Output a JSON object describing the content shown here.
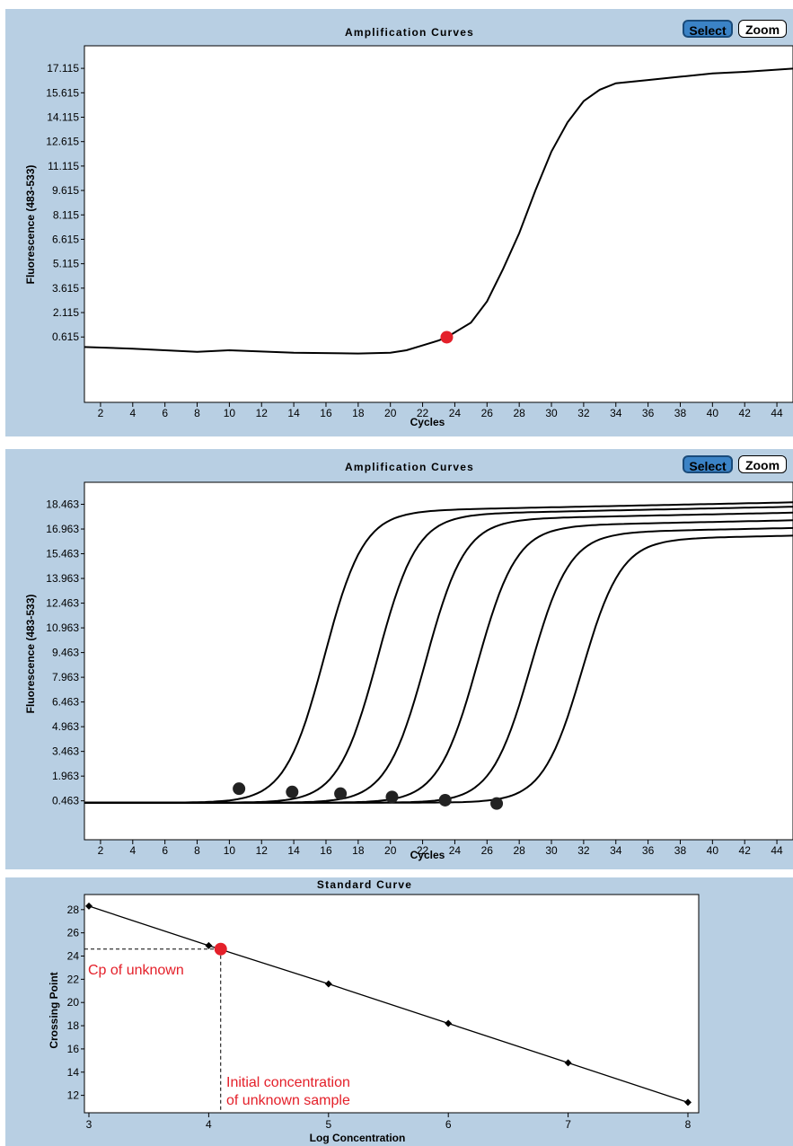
{
  "panels": [
    {
      "title": "Amplification Curves",
      "buttons": {
        "select": "Select",
        "zoom": "Zoom"
      }
    },
    {
      "title": "Amplification Curves",
      "buttons": {
        "select": "Select",
        "zoom": "Zoom"
      }
    },
    {
      "title": "Standard Curve"
    }
  ],
  "colors": {
    "panel_bg": "#b8cfe3",
    "plot_bg": "#ffffff",
    "curve": "#000000",
    "highlight": "#e4202a",
    "marker": "#222222",
    "select_button": "#3b83c6"
  },
  "chart_data": [
    {
      "type": "line",
      "title": "Amplification Curves",
      "xlabel": "Cycles",
      "ylabel": "Fluorescence (483-533)",
      "xlim": [
        1,
        45
      ],
      "ylim": [
        -3.4,
        18.5
      ],
      "xticks": [
        2,
        4,
        6,
        8,
        10,
        12,
        14,
        16,
        18,
        20,
        22,
        24,
        26,
        28,
        30,
        32,
        34,
        36,
        38,
        40,
        42,
        44
      ],
      "yticks": [
        "0.615",
        "2.115",
        "3.615",
        "5.115",
        "6.615",
        "8.115",
        "9.615",
        "11.115",
        "12.615",
        "14.115",
        "15.615",
        "17.115"
      ],
      "series": [
        {
          "x": [
            1,
            4,
            8,
            10,
            14,
            18,
            20,
            21,
            22,
            23,
            23.5,
            25,
            26,
            27,
            28,
            29,
            30,
            31,
            32,
            33,
            34,
            36,
            38,
            40,
            42,
            45
          ],
          "y": [
            0.0,
            -0.1,
            -0.3,
            -0.2,
            -0.35,
            -0.4,
            -0.35,
            -0.2,
            0.1,
            0.4,
            0.6,
            1.5,
            2.8,
            4.8,
            7.0,
            9.6,
            12.0,
            13.8,
            15.1,
            15.8,
            16.2,
            16.4,
            16.6,
            16.8,
            16.9,
            17.1
          ]
        }
      ],
      "highlight_point": {
        "x": 23.5,
        "y": 0.6
      }
    },
    {
      "type": "line",
      "title": "Amplification Curves",
      "xlabel": "Cycles",
      "ylabel": "Fluorescence (483-533)",
      "xlim": [
        1,
        45
      ],
      "ylim": [
        -1.9,
        19.8
      ],
      "xticks": [
        2,
        4,
        6,
        8,
        10,
        12,
        14,
        16,
        18,
        20,
        22,
        24,
        26,
        28,
        30,
        32,
        34,
        36,
        38,
        40,
        42,
        44
      ],
      "yticks": [
        "0.463",
        "1.963",
        "3.463",
        "4.963",
        "6.463",
        "7.963",
        "9.463",
        "10.963",
        "12.463",
        "13.963",
        "15.463",
        "16.963",
        "18.463"
      ],
      "series": [
        {
          "cp": 10.6,
          "plateau": 18.1
        },
        {
          "cp": 13.9,
          "plateau": 17.9
        },
        {
          "cp": 16.9,
          "plateau": 17.6
        },
        {
          "cp": 20.1,
          "plateau": 17.2
        },
        {
          "cp": 23.4,
          "plateau": 16.8
        },
        {
          "cp": 26.6,
          "plateau": 16.4
        }
      ],
      "crossing_points": [
        {
          "x": 10.6,
          "y": 1.2
        },
        {
          "x": 13.9,
          "y": 1.0
        },
        {
          "x": 16.9,
          "y": 0.9
        },
        {
          "x": 20.1,
          "y": 0.7
        },
        {
          "x": 23.4,
          "y": 0.5
        },
        {
          "x": 26.6,
          "y": 0.3
        }
      ]
    },
    {
      "type": "line",
      "title": "Standard Curve",
      "xlabel": "Log Concentration",
      "ylabel": "Crossing Point",
      "xlim": [
        3,
        8
      ],
      "ylim": [
        10.5,
        29.3
      ],
      "xticks": [
        "3",
        "4",
        "5",
        "6",
        "7",
        "8"
      ],
      "yticks": [
        "12",
        "14",
        "16",
        "18",
        "20",
        "22",
        "24",
        "26",
        "28"
      ],
      "series": [
        {
          "x": [
            3,
            4,
            5,
            6,
            7,
            8
          ],
          "y": [
            28.3,
            24.9,
            21.6,
            18.2,
            14.8,
            11.4
          ]
        }
      ],
      "unknown_point": {
        "x": 4.1,
        "y": 24.6
      },
      "annotations": {
        "cp_label": "Cp of unknown",
        "conc_label_line1": "Initial concentration",
        "conc_label_line2": "of unknown sample"
      }
    }
  ]
}
